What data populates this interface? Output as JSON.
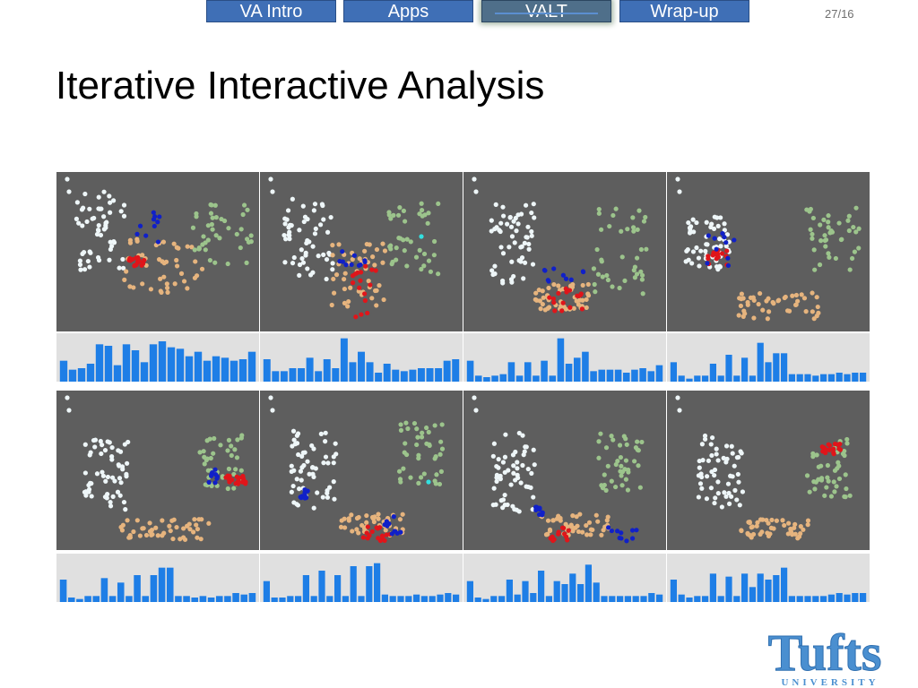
{
  "nav": {
    "tabs": [
      {
        "label": "VA Intro",
        "active": false
      },
      {
        "label": "Apps",
        "active": false
      },
      {
        "label": "VALT",
        "active": true
      },
      {
        "label": "Wrap-up",
        "active": false
      }
    ],
    "page_number": "27/16"
  },
  "slide": {
    "title": "Iterative Interactive Analysis"
  },
  "logo": {
    "wordmark": "Tufts",
    "subtitle": "UNIVERSITY"
  },
  "colors": {
    "nav_tab": "#3f6fb6",
    "scatter_bg": "#5e5e5e",
    "hist_bg": "#e0e0e0",
    "bar": "#1e7ee6",
    "white_cluster": "#eef6f8",
    "tan_cluster": "#e6b47e",
    "green_cluster": "#9cc48c",
    "selected_red": "#e0151a",
    "selected_blue": "#1020c8",
    "logo_blue": "#4a8fd0"
  },
  "chart_data": [
    {
      "type": "bar",
      "values": [
        14,
        8,
        9,
        12,
        25,
        24,
        11,
        25,
        21,
        13,
        25,
        27,
        23,
        22,
        17,
        20,
        14,
        17,
        16,
        14,
        15,
        20
      ]
    },
    {
      "type": "bar",
      "values": [
        15,
        7,
        7,
        9,
        9,
        16,
        7,
        15,
        9,
        29,
        13,
        20,
        13,
        6,
        12,
        8,
        7,
        8,
        9,
        9,
        9,
        14,
        15
      ]
    },
    {
      "type": "bar",
      "values": [
        14,
        4,
        3,
        4,
        5,
        13,
        4,
        13,
        4,
        14,
        4,
        29,
        12,
        16,
        20,
        7,
        8,
        8,
        8,
        6,
        8,
        9,
        7,
        11
      ]
    },
    {
      "type": "bar",
      "values": [
        13,
        4,
        2,
        4,
        4,
        12,
        4,
        18,
        4,
        16,
        4,
        26,
        13,
        19,
        19,
        5,
        5,
        5,
        4,
        5,
        5,
        6,
        5,
        6,
        6
      ]
    },
    {
      "type": "bar",
      "values": [
        15,
        3,
        2,
        4,
        4,
        16,
        4,
        13,
        4,
        18,
        4,
        18,
        23,
        23,
        4,
        4,
        3,
        4,
        3,
        4,
        4,
        6,
        5,
        6
      ]
    },
    {
      "type": "bar",
      "values": [
        14,
        3,
        3,
        4,
        4,
        18,
        4,
        21,
        4,
        18,
        4,
        24,
        4,
        24,
        26,
        5,
        4,
        4,
        4,
        5,
        4,
        4,
        5,
        6,
        5
      ]
    },
    {
      "type": "bar",
      "values": [
        14,
        3,
        2,
        4,
        4,
        15,
        5,
        14,
        6,
        21,
        4,
        14,
        12,
        19,
        12,
        25,
        13,
        4,
        4,
        4,
        4,
        4,
        4,
        6,
        5
      ]
    },
    {
      "type": "bar",
      "values": [
        15,
        5,
        3,
        4,
        4,
        19,
        4,
        17,
        4,
        19,
        10,
        19,
        15,
        18,
        23,
        4,
        4,
        4,
        4,
        4,
        5,
        6,
        5,
        6,
        6
      ]
    }
  ]
}
